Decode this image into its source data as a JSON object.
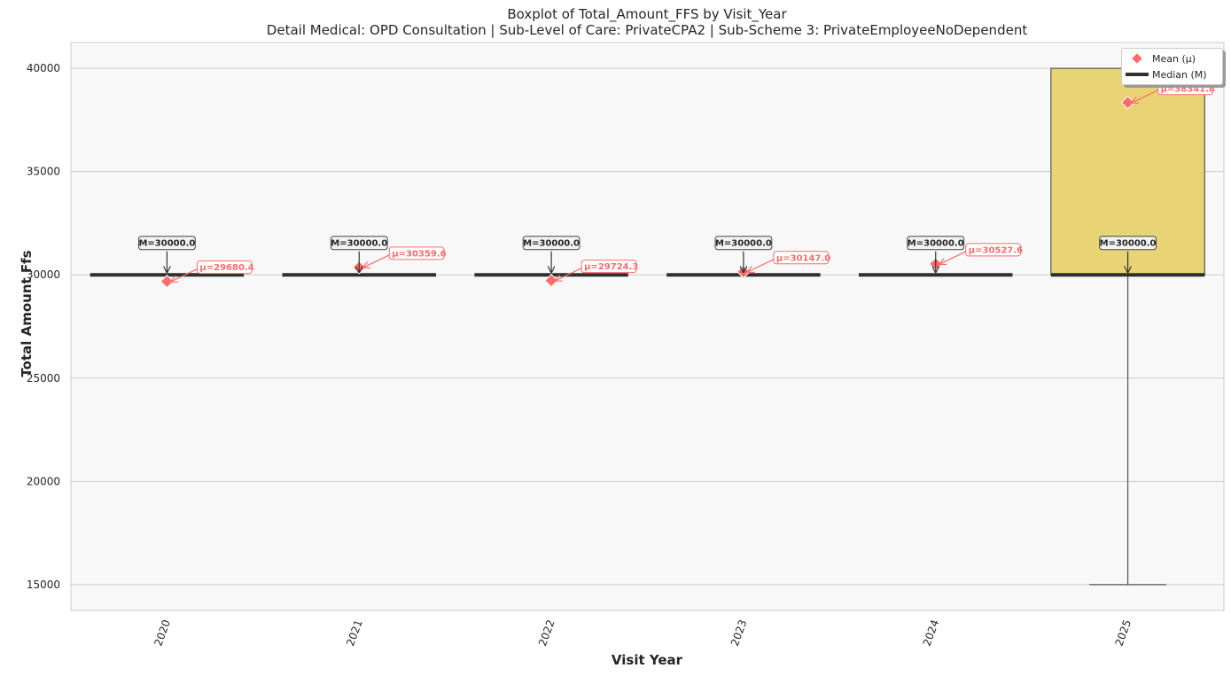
{
  "chart_data": {
    "type": "box",
    "title": "Boxplot of Total_Amount_FFS by Visit_Year",
    "subtitle": "Detail Medical: OPD Consultation | Sub-Level of Care: PrivateCPA2 | Sub-Scheme 3: PrivateEmployeeNoDependent",
    "xlabel": "Visit Year",
    "ylabel": "Total Amount Ffs",
    "ylim": [
      13750,
      41250
    ],
    "yticks": [
      15000,
      20000,
      25000,
      30000,
      35000,
      40000
    ],
    "categories": [
      "2020",
      "2021",
      "2022",
      "2023",
      "2024",
      "2025"
    ],
    "boxes": [
      {
        "category": "2020",
        "min": 30000,
        "q1": 30000,
        "median": 30000,
        "q3": 30000,
        "max": 30000,
        "mean": 29680.4
      },
      {
        "category": "2021",
        "min": 30000,
        "q1": 30000,
        "median": 30000,
        "q3": 30000,
        "max": 30000,
        "mean": 30359.6
      },
      {
        "category": "2022",
        "min": 30000,
        "q1": 30000,
        "median": 30000,
        "q3": 30000,
        "max": 30000,
        "mean": 29724.3
      },
      {
        "category": "2023",
        "min": 30000,
        "q1": 30000,
        "median": 30000,
        "q3": 30000,
        "max": 30000,
        "mean": 30147.0
      },
      {
        "category": "2024",
        "min": 30000,
        "q1": 30000,
        "median": 30000,
        "q3": 30000,
        "max": 30000,
        "mean": 30527.6
      },
      {
        "category": "2025",
        "min": 15000,
        "q1": 30000,
        "median": 30000,
        "q3": 40000,
        "max": 40000,
        "mean": 38341.8
      }
    ],
    "median_labels": [
      "M=30000.0",
      "M=30000.0",
      "M=30000.0",
      "M=30000.0",
      "M=30000.0",
      "M=30000.0"
    ],
    "mean_labels": [
      "μ=29680.4",
      "μ=30359.6",
      "μ=29724.3",
      "μ=30147.0",
      "μ=30527.6",
      "μ=38341.8"
    ],
    "legend": {
      "position": "upper-right",
      "items": [
        {
          "label": "Mean (μ)",
          "symbol": "diamond"
        },
        {
          "label": "Median (M)",
          "symbol": "line"
        }
      ]
    },
    "grid": "y",
    "colors": {
      "box_fill": "#e8d474",
      "median": "#2f2f2f",
      "mean": "#ff6b6b",
      "plot_bg": "#f8f8f8",
      "grid": "#cccccc"
    }
  }
}
